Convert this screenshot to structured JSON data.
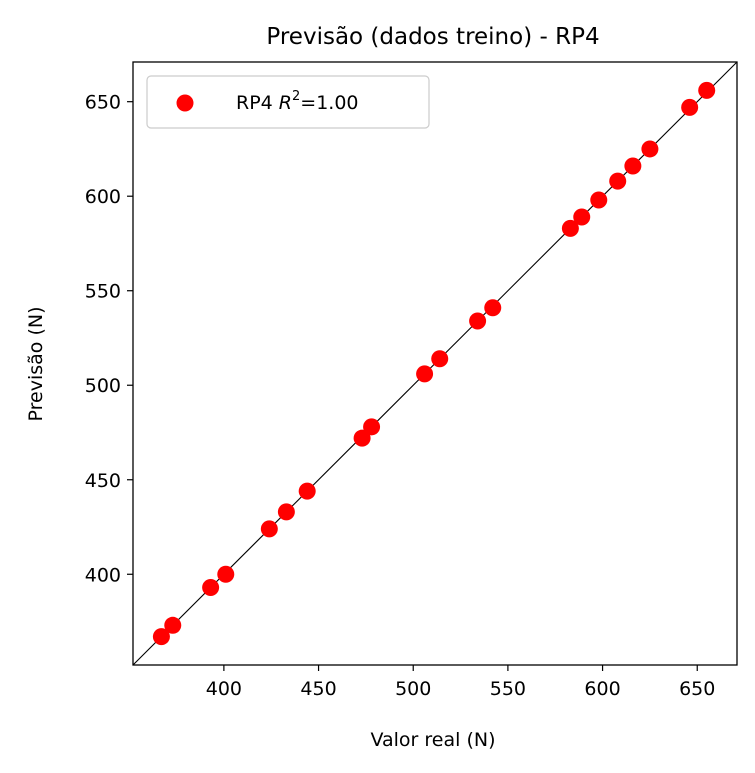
{
  "chart_data": {
    "type": "scatter",
    "title": "Previsão (dados treino) - RP4",
    "xlabel": "Valor real (N)",
    "ylabel": "Previsão (N)",
    "xlim": [
      352,
      671
    ],
    "ylim": [
      352,
      671
    ],
    "xticks": [
      400,
      450,
      500,
      550,
      600,
      650
    ],
    "yticks": [
      400,
      450,
      500,
      550,
      600,
      650
    ],
    "grid": false,
    "legend_position": "top-left",
    "identity_line": true,
    "series": [
      {
        "name": "RP4 R²=1.00",
        "name_text": "RP4 ",
        "name_italic": "R",
        "name_sup": "2",
        "name_suffix": "=1.00",
        "color": "#ff0000",
        "x": [
          367,
          373,
          393,
          401,
          424,
          433,
          444,
          473,
          478,
          506,
          514,
          534,
          542,
          583,
          589,
          598,
          608,
          616,
          625,
          646,
          655
        ],
        "y": [
          367,
          373,
          393,
          400,
          424,
          433,
          444,
          472,
          478,
          506,
          514,
          534,
          541,
          583,
          589,
          598,
          608,
          616,
          625,
          647,
          656
        ]
      }
    ]
  }
}
